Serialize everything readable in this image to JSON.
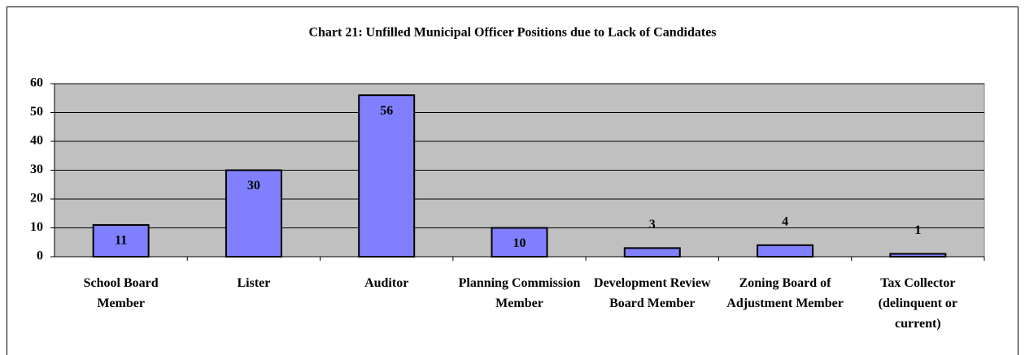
{
  "chart_data": {
    "type": "bar",
    "title": "Chart 21:  Unfilled Municipal Officer Positions due to Lack of Candidates",
    "categories": [
      "School Board Member",
      "Lister",
      "Auditor",
      "Planning Commission Member",
      "Development Review Board Member",
      "Zoning Board of Adjustment Member",
      "Tax Collector (delinquent or current)"
    ],
    "values": [
      11,
      30,
      56,
      10,
      3,
      4,
      1
    ],
    "color": "#8080ff",
    "ylim": [
      0,
      60
    ],
    "yticks": [
      0,
      10,
      20,
      30,
      40,
      50,
      60
    ],
    "grid": true
  }
}
